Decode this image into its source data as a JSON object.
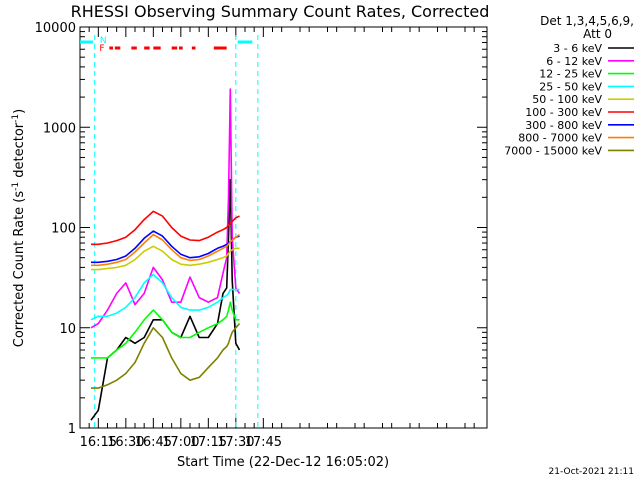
{
  "chart_data": {
    "type": "line",
    "title": "RHESSI Observing Summary Count Rates, Corrected",
    "xlabel": "Start Time (22-Dec-12 16:05:02)",
    "ylabel_main": "Corrected Count Rate (s",
    "ylabel_sup1": "-1",
    "ylabel_mid": " detector",
    "ylabel_sup2": "-1",
    "ylabel_end": ")",
    "y_scale": "log",
    "ylim": [
      1,
      10000
    ],
    "xlim_minutes_of_day": [
      965,
      1187
    ],
    "x_ticks": [
      "16:15",
      "16:30",
      "16:45",
      "17:00",
      "17:15",
      "17:30",
      "17:45"
    ],
    "y_ticks": [
      "1",
      "10",
      "100",
      "1000",
      "10000"
    ],
    "legend_placement": "right",
    "detectors": "Det 1,3,4,5,6,9,",
    "attenuator": "Att 0",
    "timestamp": "21-Oct-2021 21:11",
    "flags": {
      "N_label": "N",
      "F_label": "F",
      "night_bar_color": "#00ffff",
      "flare_bar_color": "#ff0000",
      "night_intervals": [
        [
          "16:05",
          "16:12"
        ],
        [
          "17:31",
          "17:39"
        ]
      ],
      "night_markers": [
        "16:13",
        "17:30",
        "17:42"
      ],
      "flare_intervals": [
        [
          "16:21",
          "16:23"
        ],
        [
          "16:24",
          "16:27"
        ],
        [
          "16:33",
          "16:36"
        ],
        [
          "16:40",
          "16:43"
        ],
        [
          "16:45",
          "16:49"
        ],
        [
          "16:55",
          "16:58"
        ],
        [
          "16:59",
          "17:01"
        ],
        [
          "17:06",
          "17:08"
        ],
        [
          "17:18",
          "17:25"
        ]
      ]
    },
    "data_x": [
      "16:11",
      "16:15",
      "16:20",
      "16:25",
      "16:30",
      "16:35",
      "16:40",
      "16:45",
      "16:50",
      "16:55",
      "17:00",
      "17:05",
      "17:10",
      "17:15",
      "17:20",
      "17:23",
      "17:25",
      "17:26",
      "17:27",
      "17:28",
      "17:30",
      "17:32"
    ],
    "series": [
      {
        "name": "3 - 6 keV",
        "color": "#000000",
        "values": [
          1.2,
          1.5,
          5,
          6,
          8,
          7,
          8,
          12,
          12,
          9,
          8,
          13,
          8,
          8,
          11,
          22,
          25,
          80,
          300,
          30,
          7,
          6
        ]
      },
      {
        "name": "6 - 12 keV",
        "color": "#ff00ff",
        "values": [
          10,
          11,
          15,
          22,
          28,
          17,
          22,
          40,
          30,
          18,
          18,
          32,
          20,
          18,
          20,
          35,
          50,
          200,
          2400,
          80,
          25,
          22
        ]
      },
      {
        "name": "12 - 25 keV",
        "color": "#00ff00",
        "values": [
          5,
          5,
          5,
          6,
          7,
          9,
          12,
          15,
          12,
          9,
          8,
          8,
          9,
          10,
          11,
          12,
          13,
          15,
          18,
          15,
          12,
          12
        ]
      },
      {
        "name": "25 - 50 keV",
        "color": "#00ffff",
        "values": [
          12,
          13,
          13,
          14,
          16,
          20,
          28,
          34,
          28,
          20,
          16,
          15,
          15,
          16,
          18,
          20,
          21,
          22,
          24,
          24,
          24,
          24
        ]
      },
      {
        "name": "50 - 100 keV",
        "color": "#cccc00",
        "values": [
          38,
          38,
          39,
          40,
          42,
          48,
          58,
          65,
          58,
          48,
          43,
          42,
          43,
          45,
          48,
          50,
          52,
          55,
          58,
          60,
          62,
          62
        ]
      },
      {
        "name": "100 - 300 keV",
        "color": "#ff0000",
        "values": [
          68,
          68,
          70,
          74,
          80,
          95,
          120,
          145,
          130,
          100,
          82,
          75,
          74,
          80,
          90,
          95,
          100,
          105,
          110,
          115,
          125,
          130
        ]
      },
      {
        "name": "300 - 800 keV",
        "color": "#0000ff",
        "values": [
          45,
          45,
          46,
          48,
          52,
          62,
          78,
          92,
          82,
          65,
          54,
          50,
          51,
          55,
          62,
          65,
          68,
          70,
          72,
          75,
          80,
          82
        ]
      },
      {
        "name": "800 - 7000 keV",
        "color": "#ff8000",
        "values": [
          42,
          42,
          43,
          45,
          48,
          57,
          70,
          85,
          75,
          60,
          50,
          47,
          48,
          52,
          58,
          62,
          65,
          68,
          72,
          75,
          80,
          85
        ]
      },
      {
        "name": "7000 - 15000 keV",
        "color": "#808000",
        "values": [
          2.5,
          2.5,
          2.7,
          3,
          3.5,
          4.5,
          7,
          10,
          8,
          5,
          3.5,
          3,
          3.2,
          4,
          5,
          6,
          6.5,
          7,
          8,
          9,
          10,
          11
        ]
      }
    ]
  }
}
